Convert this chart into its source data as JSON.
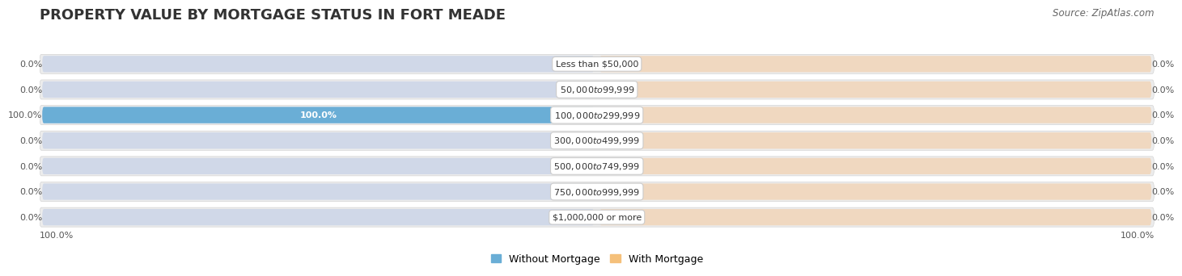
{
  "title": "PROPERTY VALUE BY MORTGAGE STATUS IN FORT MEADE",
  "source": "Source: ZipAtlas.com",
  "categories": [
    "Less than $50,000",
    "$50,000 to $99,999",
    "$100,000 to $299,999",
    "$300,000 to $499,999",
    "$500,000 to $749,999",
    "$750,000 to $999,999",
    "$1,000,000 or more"
  ],
  "without_mortgage": [
    0.0,
    0.0,
    100.0,
    0.0,
    0.0,
    0.0,
    0.0
  ],
  "with_mortgage": [
    0.0,
    0.0,
    0.0,
    0.0,
    0.0,
    0.0,
    0.0
  ],
  "color_without": "#6aaed6",
  "color_with": "#f5c07a",
  "row_bg_color": "#ececec",
  "row_bg_color_alt": "#f5f5f5",
  "bar_bg_left": "#d0d8e8",
  "bar_bg_right": "#f0d8c0",
  "xlim": 100,
  "title_fontsize": 13,
  "source_fontsize": 8.5,
  "label_fontsize": 8,
  "value_fontsize": 8,
  "legend_fontsize": 9,
  "bottom_tick_left": "100.0%",
  "bottom_tick_right": "100.0%"
}
